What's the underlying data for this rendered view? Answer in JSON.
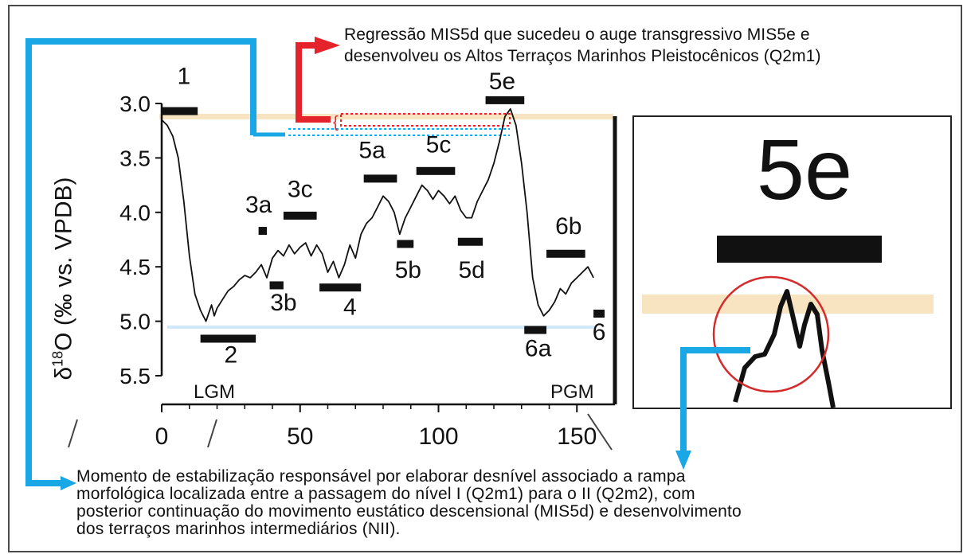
{
  "caption_top": {
    "line1": "Regressão MIS5d que sucedeu o auge transgressivo MIS5e e",
    "line2": "desenvolveu os Altos Terraços Marinhos Pleistocênicos (Q2m1)"
  },
  "caption_bottom": {
    "line1": "Momento de estabilização responsável por elaborar desnível associado a rampa",
    "line2": "morfológica localizada entre a passagem do nível I (Q2m1) para o II (Q2m2), com",
    "line3": "posterior continuação do movimento eustático descensional (MIS5d) e desenvolvimento",
    "line4": "dos terraços marinhos intermediários (NII)."
  },
  "colors": {
    "blue_arrow": "#1aa7e6",
    "red_arrow": "#e4232b",
    "highstand_band": "#f8e4c0",
    "lgm_line": "#cfe9fb",
    "curve": "#111111",
    "circle": "#d42c2c"
  },
  "inset": {
    "label": "5e"
  },
  "chart_data": {
    "type": "line",
    "xlabel": "",
    "ylabel": "δ¹⁸O (‰ vs. VPDB)",
    "ylabel_parts": {
      "delta": "δ",
      "sup": "18",
      "rest": "O (‰ vs. VPDB)"
    },
    "y_inverted": true,
    "xlim": [
      0,
      160
    ],
    "ylim": [
      3.0,
      5.5
    ],
    "xticks": [
      "0",
      "50",
      "100",
      "150"
    ],
    "yticks": [
      "3.0",
      "3.5",
      "4.0",
      "4.5",
      "5.0",
      "5.5"
    ],
    "grid": false,
    "series": [
      {
        "x": [
          0,
          2,
          4,
          6,
          8,
          10,
          12,
          14,
          16,
          18,
          19,
          20,
          22,
          24,
          26,
          28,
          30,
          32,
          34,
          36,
          38,
          40,
          42,
          44,
          46,
          48,
          50,
          52,
          54,
          56,
          58,
          60,
          62,
          64,
          66,
          68,
          70,
          72,
          74,
          76,
          78,
          80,
          82,
          84,
          86,
          88,
          90,
          92,
          94,
          96,
          98,
          100,
          102,
          104,
          106,
          108,
          110,
          112,
          114,
          116,
          118,
          120,
          122,
          124,
          126,
          128,
          130,
          132,
          134,
          136,
          138,
          140,
          142,
          144,
          146,
          148,
          150,
          152,
          154,
          156
        ],
        "y": [
          3.15,
          3.2,
          3.3,
          3.5,
          3.9,
          4.4,
          4.75,
          4.9,
          5.0,
          4.85,
          4.95,
          4.88,
          4.8,
          4.72,
          4.68,
          4.62,
          4.58,
          4.6,
          4.55,
          4.48,
          4.6,
          4.42,
          4.35,
          4.4,
          4.3,
          4.38,
          4.32,
          4.28,
          4.4,
          4.3,
          4.38,
          4.55,
          4.45,
          4.6,
          4.48,
          4.3,
          4.42,
          4.2,
          4.1,
          4.05,
          3.95,
          3.85,
          3.9,
          4.0,
          4.2,
          4.05,
          3.95,
          3.85,
          3.75,
          3.8,
          3.88,
          3.8,
          3.85,
          3.92,
          3.85,
          3.98,
          4.05,
          4.05,
          3.9,
          3.8,
          3.7,
          3.55,
          3.35,
          3.12,
          3.05,
          3.2,
          3.55,
          4.0,
          4.6,
          4.85,
          4.95,
          4.9,
          4.82,
          4.7,
          4.75,
          4.65,
          4.6,
          4.55,
          4.5,
          4.6
        ]
      }
    ],
    "stage_labels": [
      {
        "text": "1",
        "x": 8,
        "y": 2.82
      },
      {
        "text": "2",
        "x": 25,
        "y": 5.38
      },
      {
        "text": "3a",
        "x": 35,
        "y": 4.0
      },
      {
        "text": "3b",
        "x": 44,
        "y": 4.9
      },
      {
        "text": "3c",
        "x": 50,
        "y": 3.86
      },
      {
        "text": "4",
        "x": 68,
        "y": 4.94
      },
      {
        "text": "5a",
        "x": 76,
        "y": 3.5
      },
      {
        "text": "5b",
        "x": 89,
        "y": 4.6
      },
      {
        "text": "5c",
        "x": 100,
        "y": 3.45
      },
      {
        "text": "5d",
        "x": 112,
        "y": 4.6
      },
      {
        "text": "5e",
        "x": 123,
        "y": 2.87
      },
      {
        "text": "6a",
        "x": 136,
        "y": 5.32
      },
      {
        "text": "6b",
        "x": 147,
        "y": 4.2
      },
      {
        "text": "6",
        "x": 158,
        "y": 5.17
      }
    ],
    "stage_bars": [
      {
        "x0": 0,
        "x1": 13,
        "y": 3.07
      },
      {
        "x0": 14,
        "x1": 34,
        "y": 5.16
      },
      {
        "x0": 35,
        "x1": 38,
        "y": 4.17
      },
      {
        "x0": 39,
        "x1": 44,
        "y": 4.67
      },
      {
        "x0": 44,
        "x1": 56,
        "y": 4.03
      },
      {
        "x0": 57,
        "x1": 72,
        "y": 4.69
      },
      {
        "x0": 73,
        "x1": 85,
        "y": 3.69
      },
      {
        "x0": 85,
        "x1": 91,
        "y": 4.29
      },
      {
        "x0": 92,
        "x1": 106,
        "y": 3.62
      },
      {
        "x0": 107,
        "x1": 116,
        "y": 4.27
      },
      {
        "x0": 117,
        "x1": 131,
        "y": 2.97
      },
      {
        "x0": 131,
        "x1": 139,
        "y": 5.08
      },
      {
        "x0": 139,
        "x1": 153,
        "y": 4.38
      },
      {
        "x0": 156,
        "x1": 160,
        "y": 4.93
      }
    ],
    "annotations": [
      "LGM",
      "PGM"
    ]
  }
}
